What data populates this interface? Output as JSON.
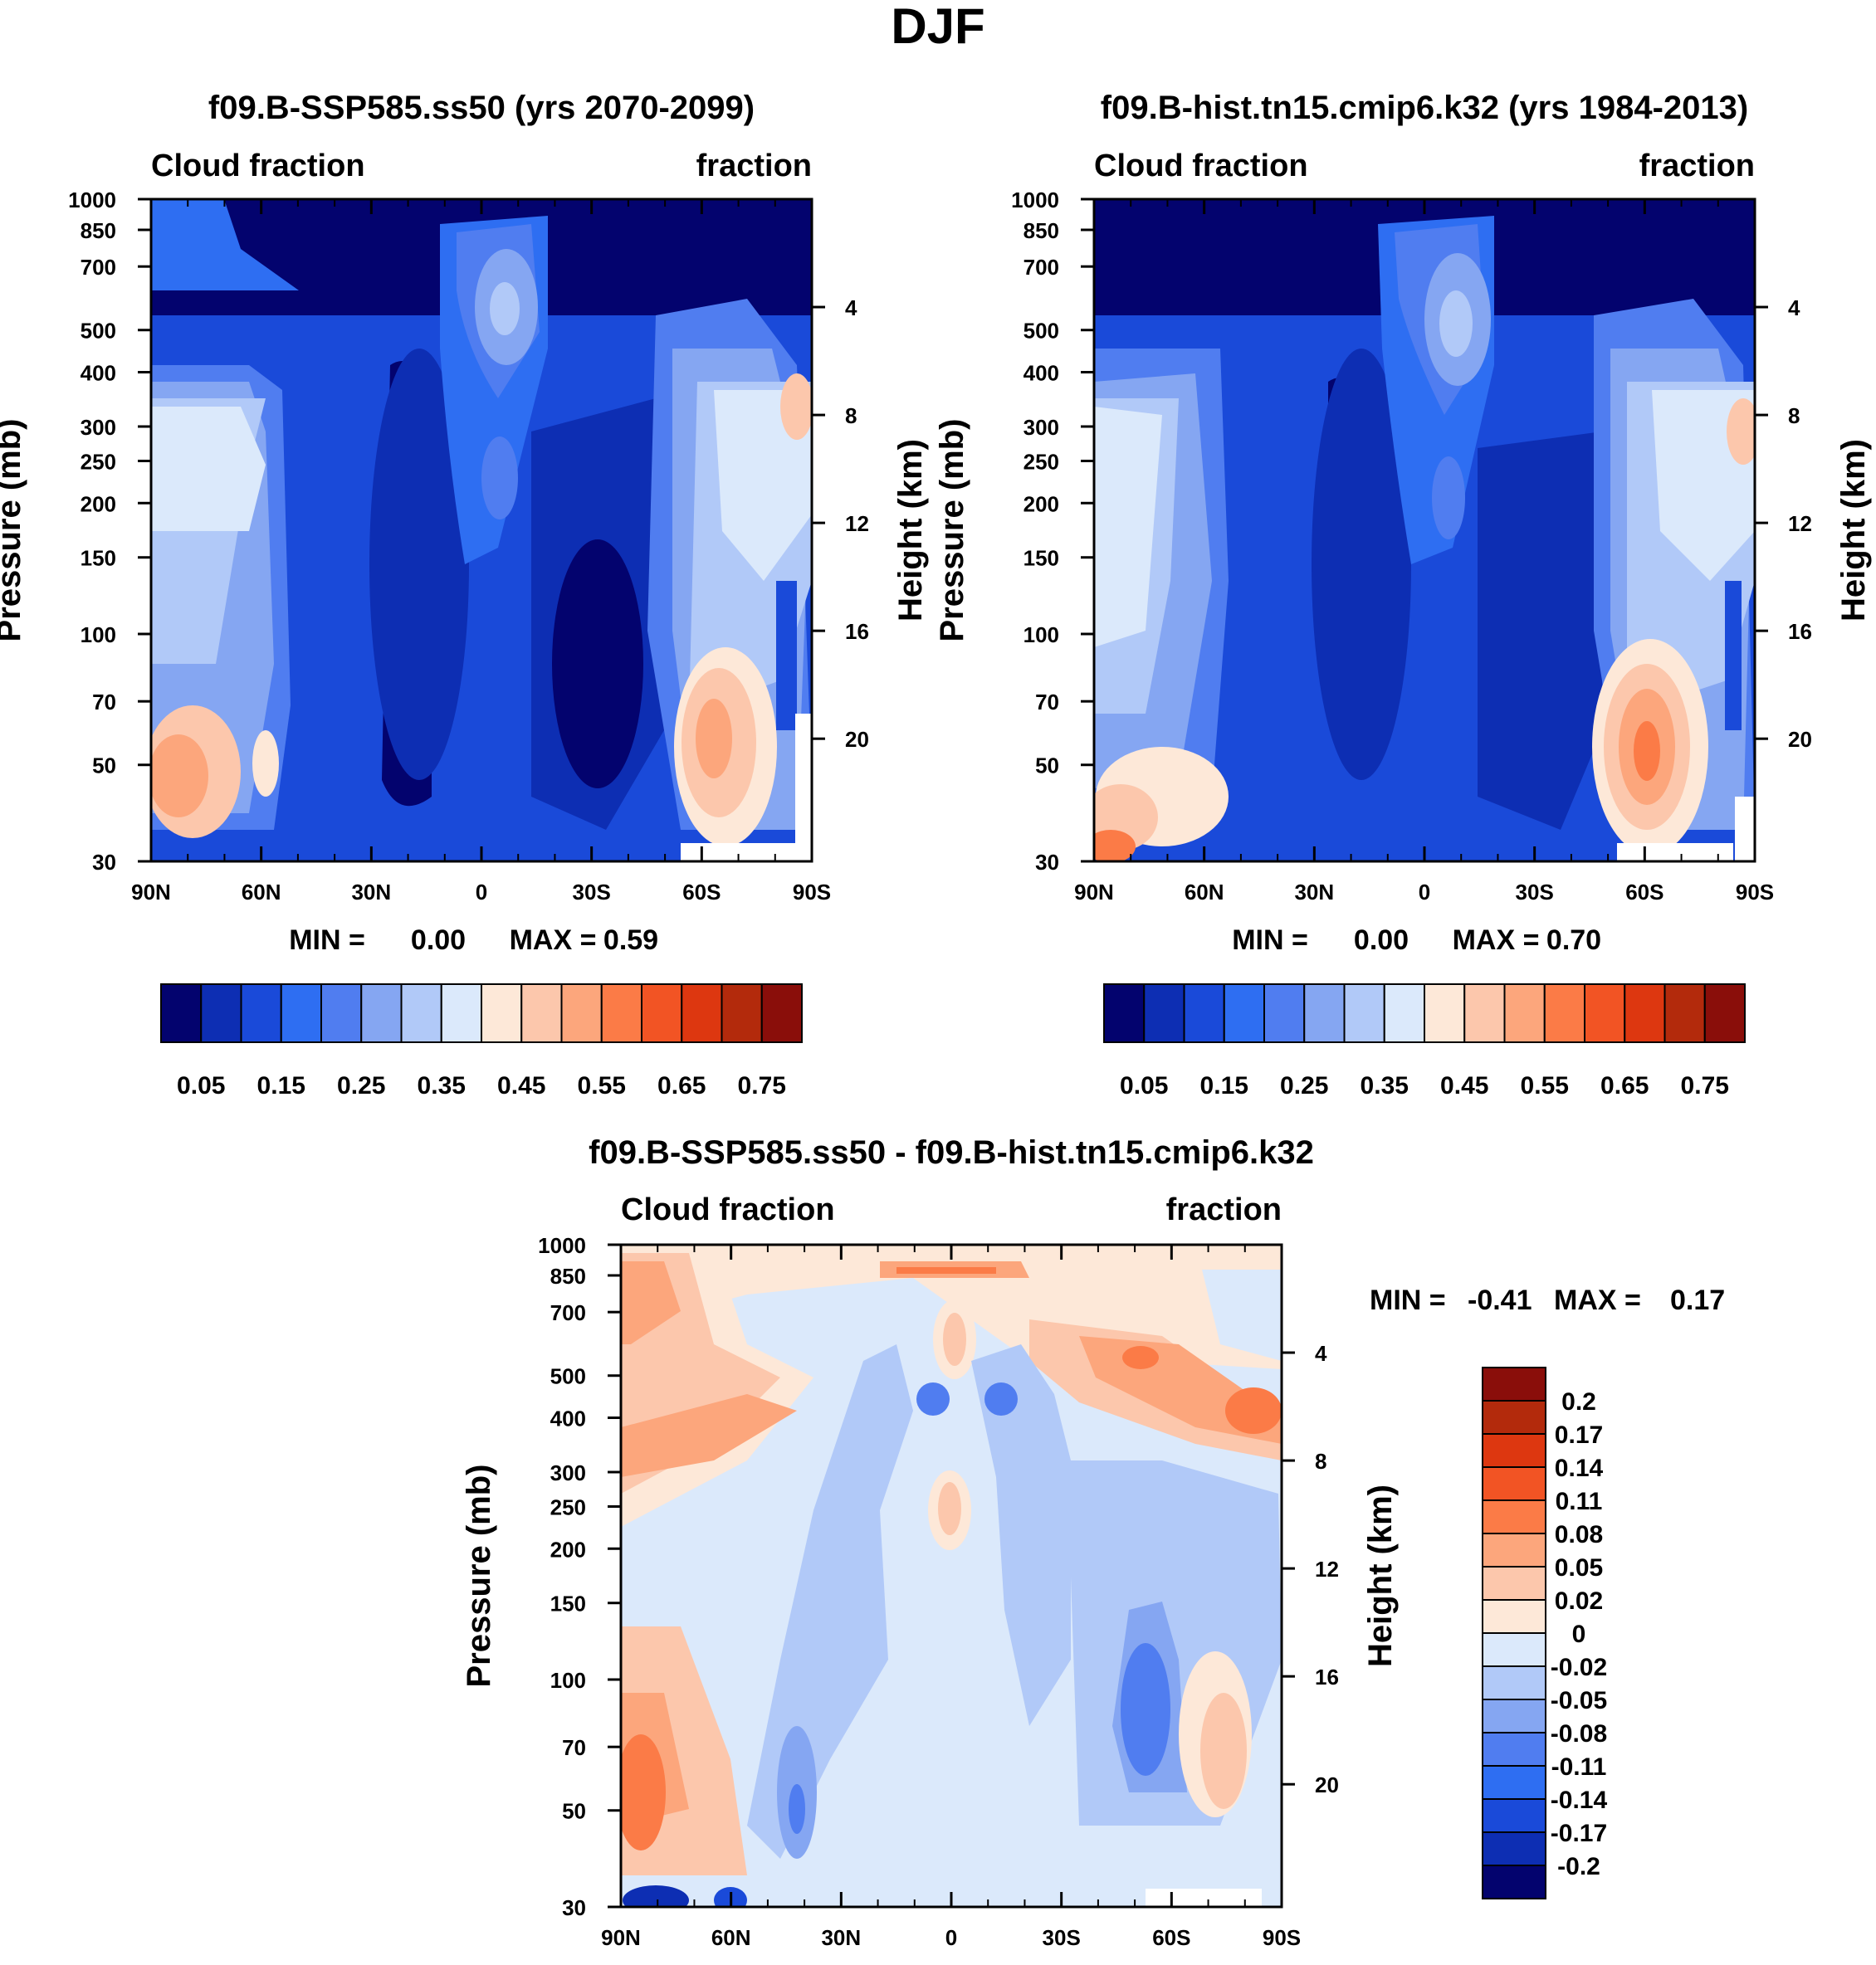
{
  "figure_title": "DJF",
  "chart_data": [
    {
      "type": "heatmap",
      "title": "f09.B-SSP585.ss50 (yrs 2070-2099)",
      "left_string": "Cloud fraction",
      "right_string": "fraction",
      "ylabel": "Pressure (mb)",
      "ylabel_right": "Height (km)",
      "x_ticks": [
        "90N",
        "60N",
        "30N",
        "0",
        "30S",
        "60S",
        "90S"
      ],
      "y_ticks": [
        "30",
        "50",
        "70",
        "100",
        "150",
        "200",
        "250",
        "300",
        "400",
        "500",
        "700",
        "850",
        "1000"
      ],
      "height_ticks": [
        "20",
        "16",
        "12",
        "8",
        "4"
      ],
      "min_label": "MIN =",
      "min_value": "0.00",
      "max_label": "MAX =",
      "max_value": "0.59",
      "colorbar_labels": [
        "0.05",
        "0.15",
        "0.25",
        "0.35",
        "0.45",
        "0.55",
        "0.65",
        "0.75"
      ],
      "colorbar_colors": [
        "#03036e",
        "#0d2eb3",
        "#1a4ad9",
        "#2e6ef2",
        "#507df0",
        "#85a6f2",
        "#b1c9f8",
        "#dbe9fb",
        "#fde8d8",
        "#fcc7ac",
        "#fca67c",
        "#fb7b47",
        "#f25424",
        "#dd3710",
        "#b32a0c",
        "#8a0e0a"
      ]
    },
    {
      "type": "heatmap",
      "title": "f09.B-hist.tn15.cmip6.k32 (yrs 1984-2013)",
      "left_string": "Cloud fraction",
      "right_string": "fraction",
      "ylabel": "Pressure (mb)",
      "ylabel_right": "Height (km)",
      "x_ticks": [
        "90N",
        "60N",
        "30N",
        "0",
        "30S",
        "60S",
        "90S"
      ],
      "y_ticks": [
        "30",
        "50",
        "70",
        "100",
        "150",
        "200",
        "250",
        "300",
        "400",
        "500",
        "700",
        "850",
        "1000"
      ],
      "height_ticks": [
        "20",
        "16",
        "12",
        "8",
        "4"
      ],
      "min_label": "MIN =",
      "min_value": "0.00",
      "max_label": "MAX =",
      "max_value": "0.70",
      "colorbar_labels": [
        "0.05",
        "0.15",
        "0.25",
        "0.35",
        "0.45",
        "0.55",
        "0.65",
        "0.75"
      ],
      "colorbar_colors": [
        "#03036e",
        "#0d2eb3",
        "#1a4ad9",
        "#2e6ef2",
        "#507df0",
        "#85a6f2",
        "#b1c9f8",
        "#dbe9fb",
        "#fde8d8",
        "#fcc7ac",
        "#fca67c",
        "#fb7b47",
        "#f25424",
        "#dd3710",
        "#b32a0c",
        "#8a0e0a"
      ]
    },
    {
      "type": "heatmap",
      "title": "f09.B-SSP585.ss50 - f09.B-hist.tn15.cmip6.k32",
      "left_string": "Cloud fraction",
      "right_string": "fraction",
      "ylabel": "Pressure (mb)",
      "ylabel_right": "Height (km)",
      "x_ticks": [
        "90N",
        "60N",
        "30N",
        "0",
        "30S",
        "60S",
        "90S"
      ],
      "y_ticks": [
        "30",
        "50",
        "70",
        "100",
        "150",
        "200",
        "250",
        "300",
        "400",
        "500",
        "700",
        "850",
        "1000"
      ],
      "height_ticks": [
        "20",
        "16",
        "12",
        "8",
        "4"
      ],
      "min_label": "MIN =",
      "min_value": "-0.41",
      "max_label": "MAX =",
      "max_value": "0.17",
      "colorbar_labels": [
        "0.2",
        "0.17",
        "0.14",
        "0.11",
        "0.08",
        "0.05",
        "0.02",
        "0",
        "-0.02",
        "-0.05",
        "-0.08",
        "-0.11",
        "-0.14",
        "-0.17",
        "-0.2"
      ],
      "colorbar_colors": [
        "#8a0e0a",
        "#b32a0c",
        "#dd3710",
        "#f25424",
        "#fb7b47",
        "#fca67c",
        "#fcc7ac",
        "#fde8d8",
        "#dbe9fb",
        "#b1c9f8",
        "#85a6f2",
        "#507df0",
        "#2e6ef2",
        "#1a4ad9",
        "#0d2eb3",
        "#03036e"
      ]
    }
  ]
}
